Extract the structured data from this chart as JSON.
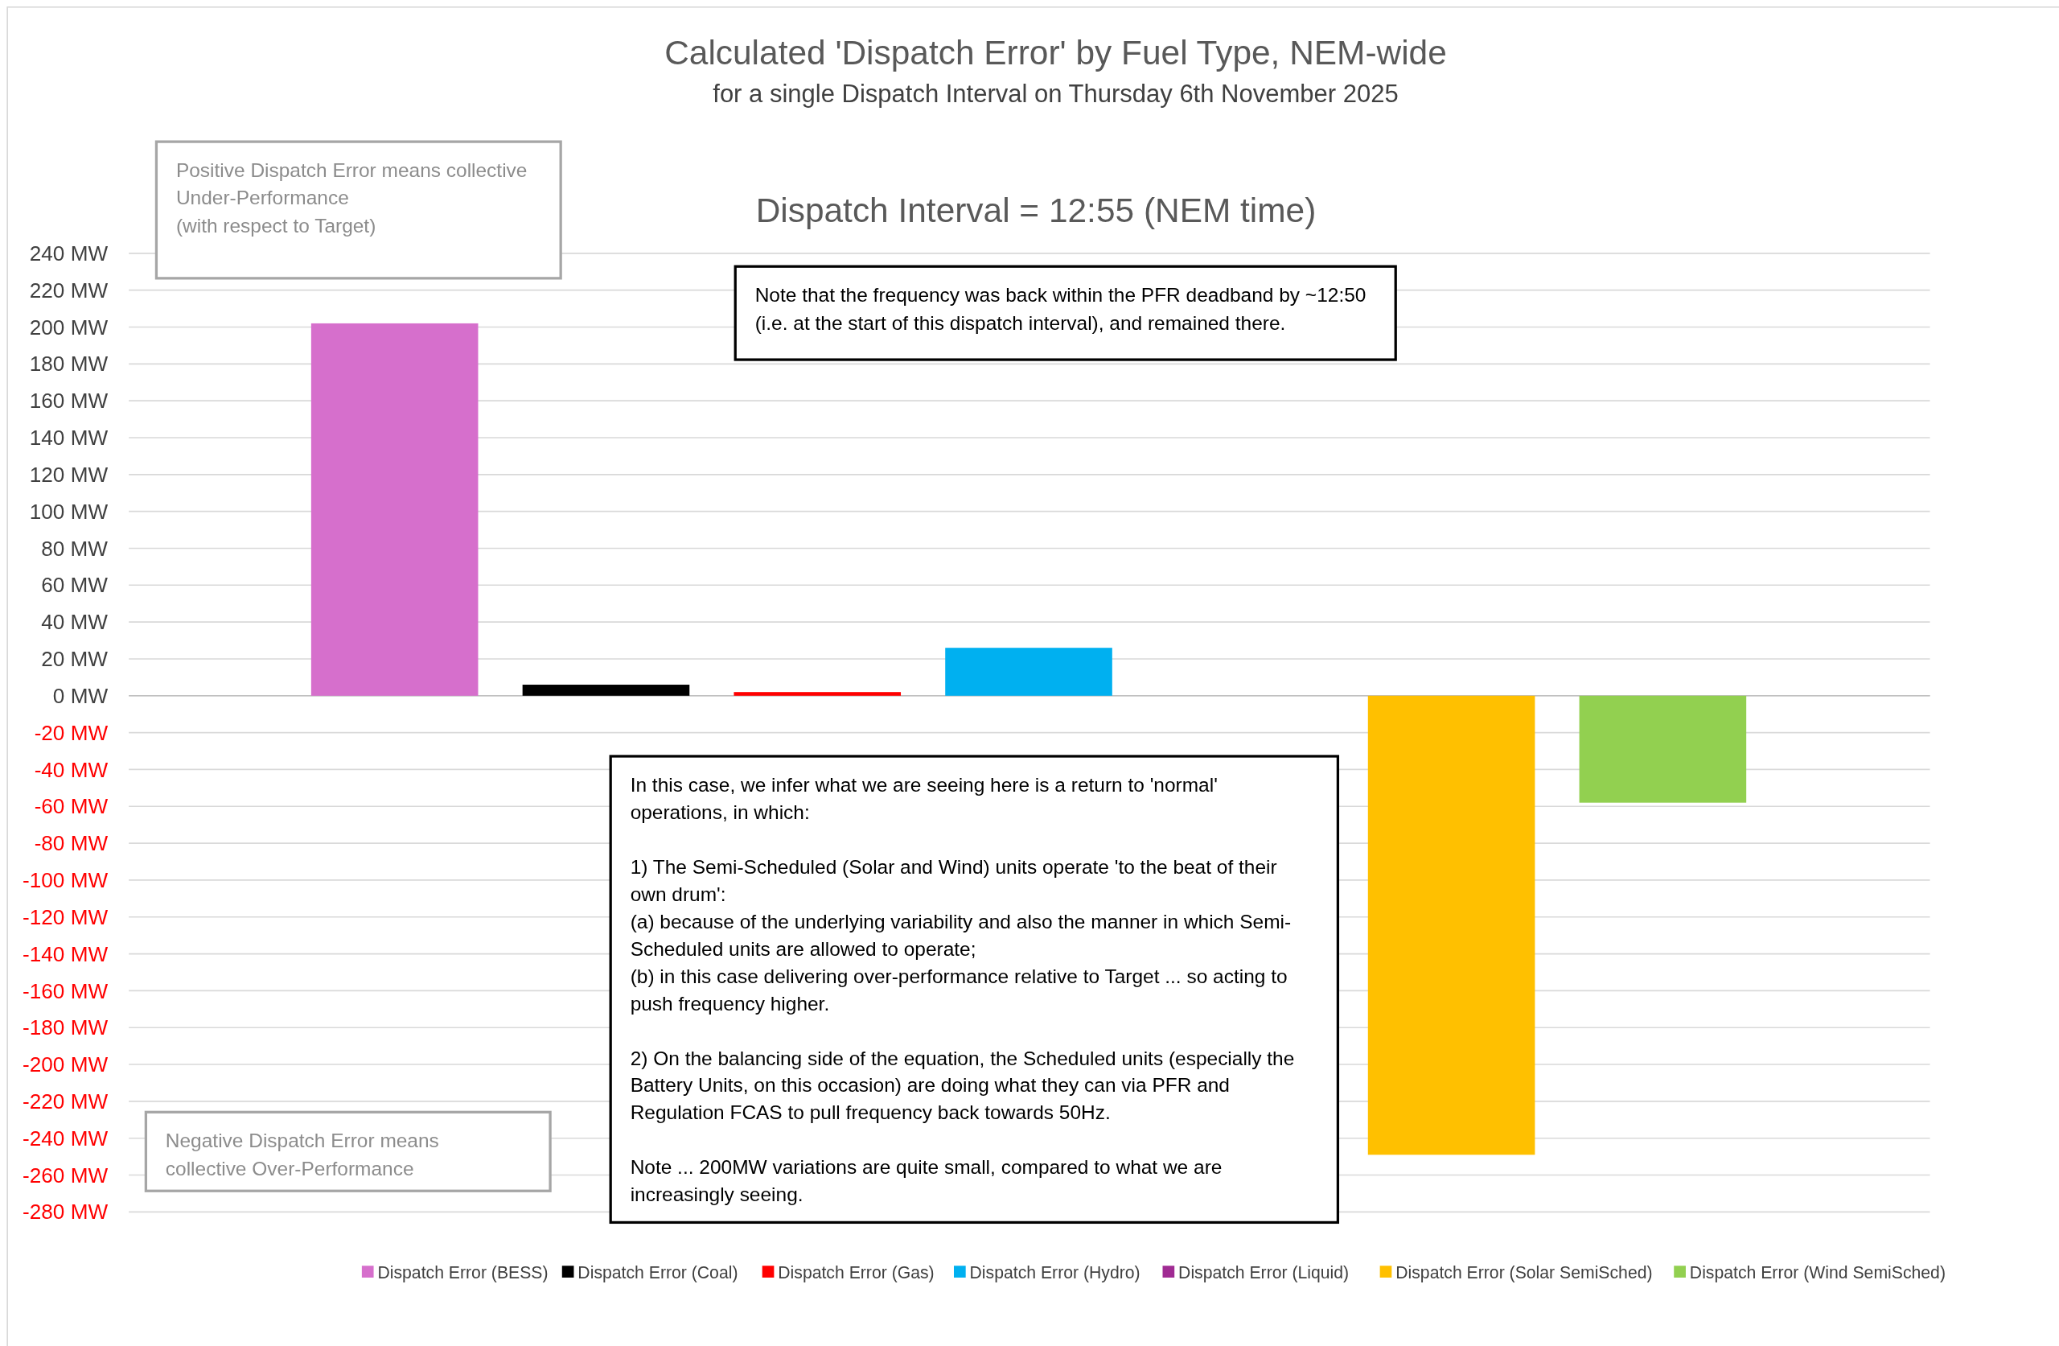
{
  "chart_data": {
    "type": "bar",
    "title": "Calculated 'Dispatch Error' by Fuel Type, NEM-wide",
    "subtitle": "for a single Dispatch Interval on Thursday 6th November 2025",
    "categories": [
      null
    ],
    "series": [
      {
        "name": "Dispatch Error (BESS)",
        "color": "#d66fcc",
        "values": [
          202
        ]
      },
      {
        "name": "Dispatch Error (Coal)",
        "color": "#000000",
        "values": [
          6
        ]
      },
      {
        "name": "Dispatch Error (Gas)",
        "color": "#ff0000",
        "values": [
          2
        ]
      },
      {
        "name": "Dispatch Error (Hydro)",
        "color": "#00b0f0",
        "values": [
          26
        ]
      },
      {
        "name": "Dispatch Error (Liquid)",
        "color": "#a02b93",
        "values": [
          0
        ]
      },
      {
        "name": "Dispatch Error (Solar SemiSched)",
        "color": "#ffc000",
        "values": [
          -249
        ]
      },
      {
        "name": "Dispatch Error (Wind SemiSched)",
        "color": "#92d050",
        "values": [
          -58
        ]
      }
    ],
    "ylim": [
      -280,
      240
    ],
    "yticks": [
      {
        "value": -280,
        "label": "-280 MW"
      },
      {
        "value": -260,
        "label": "-260 MW"
      },
      {
        "value": -240,
        "label": "-240 MW"
      },
      {
        "value": -220,
        "label": "-220 MW"
      },
      {
        "value": -200,
        "label": "-200 MW"
      },
      {
        "value": -180,
        "label": "-180 MW"
      },
      {
        "value": -160,
        "label": "-160 MW"
      },
      {
        "value": -140,
        "label": "-140 MW"
      },
      {
        "value": -120,
        "label": "-120 MW"
      },
      {
        "value": -100,
        "label": "-100 MW"
      },
      {
        "value": -80,
        "label": "-80 MW"
      },
      {
        "value": -60,
        "label": "-60 MW"
      },
      {
        "value": -40,
        "label": "-40 MW"
      },
      {
        "value": -20,
        "label": "-20 MW"
      },
      {
        "value": 0,
        "label": "0 MW"
      },
      {
        "value": 20,
        "label": "20 MW"
      },
      {
        "value": 40,
        "label": "40 MW"
      },
      {
        "value": 60,
        "label": "60 MW"
      },
      {
        "value": 80,
        "label": "80 MW"
      },
      {
        "value": 100,
        "label": "100 MW"
      },
      {
        "value": 120,
        "label": "120 MW"
      },
      {
        "value": 140,
        "label": "140 MW"
      },
      {
        "value": 160,
        "label": "160 MW"
      },
      {
        "value": 180,
        "label": "180 MW"
      },
      {
        "value": 200,
        "label": "200 MW"
      },
      {
        "value": 220,
        "label": "220 MW"
      },
      {
        "value": 240,
        "label": "240 MW"
      }
    ],
    "grid": "y",
    "legend": "bottom",
    "annotations": [
      "Dispatch Interval = 12:55 (NEM time)",
      "Positive Dispatch Error means collective\nUnder-Performance\n(with respect to Target)",
      "Note that the frequency was back within the PFR deadband by ~12:50\n(i.e. at the start of this dispatch interval), and remained there.",
      "In this case, we infer what we are seeing here is a return to 'normal'\noperations, in which:\n\n1)  The Semi-Scheduled (Solar and Wind) units operate 'to the beat of their\nown drum':\n(a)  because of the underlying variability and also the manner in which Semi-\nScheduled units are allowed to operate;\n(b) in this case delivering over-performance relative to Target ... so acting to\npush frequency higher.\n\n2)  On the balancing side of the equation, the Scheduled units (especially the\nBattery Units, on this occasion) are doing what they can via PFR and\nRegulation FCAS to pull frequency back towards 50Hz.\n\nNote ... 200MW variations are quite small, compared to what we are\nincreasingly seeing.",
      "Negative Dispatch Error means\ncollective Over-Performance"
    ]
  }
}
